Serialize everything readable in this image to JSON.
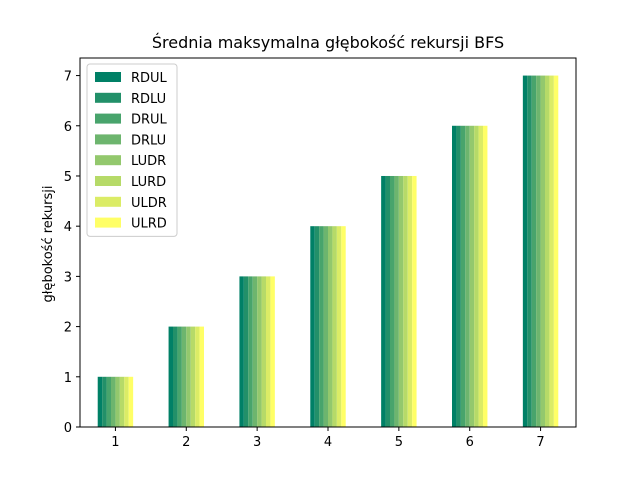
{
  "chart_data": {
    "type": "bar",
    "title": "Średnia maksymalna głębokość rekursji BFS",
    "xlabel": "",
    "ylabel": "głębokość rekursji",
    "categories": [
      "1",
      "2",
      "3",
      "4",
      "5",
      "6",
      "7"
    ],
    "ylim": [
      0,
      7.35
    ],
    "yticks": [
      0,
      1,
      2,
      3,
      4,
      5,
      6,
      7
    ],
    "grid": false,
    "legend_position": "top-left",
    "series": [
      {
        "name": "RDUL",
        "color": "#008066",
        "values": [
          1,
          2,
          3,
          4,
          5,
          6,
          7
        ]
      },
      {
        "name": "RDLU",
        "color": "#229069",
        "values": [
          1,
          2,
          3,
          4,
          5,
          6,
          7
        ]
      },
      {
        "name": "DRUL",
        "color": "#48a46c",
        "values": [
          1,
          2,
          3,
          4,
          5,
          6,
          7
        ]
      },
      {
        "name": "DRLU",
        "color": "#6db56e",
        "values": [
          1,
          2,
          3,
          4,
          5,
          6,
          7
        ]
      },
      {
        "name": "LUDR",
        "color": "#93c86d",
        "values": [
          1,
          2,
          3,
          4,
          5,
          6,
          7
        ]
      },
      {
        "name": "LURD",
        "color": "#b6da68",
        "values": [
          1,
          2,
          3,
          4,
          5,
          6,
          7
        ]
      },
      {
        "name": "ULDR",
        "color": "#dbec66",
        "values": [
          1,
          2,
          3,
          4,
          5,
          6,
          7
        ]
      },
      {
        "name": "ULRD",
        "color": "#ffff66",
        "values": [
          1,
          2,
          3,
          4,
          5,
          6,
          7
        ]
      }
    ]
  }
}
